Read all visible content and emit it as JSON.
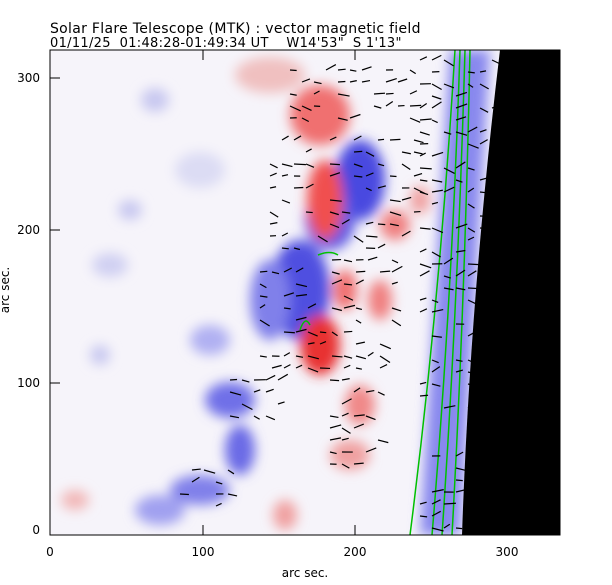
{
  "header": {
    "title": "Solar Flare Telescope (MTK) : vector magnetic field",
    "subtitle": "01/11/25  01:48:28-01:49:34 UT    W14'53\"  S 1'13\""
  },
  "chart_data": {
    "type": "heatmap",
    "title": "Solar Flare Telescope (MTK) : vector magnetic field",
    "subtitle": "01/11/25  01:48:28-01:49:34 UT    W14'53\"  S 1'13\"",
    "xlabel": "arc sec.",
    "ylabel": "arc sec.",
    "xlim": [
      0,
      335
    ],
    "ylim": [
      0,
      318
    ],
    "xticks": [
      "0",
      "100",
      "200",
      "300"
    ],
    "yticks": [
      "0",
      "100",
      "200",
      "300"
    ],
    "colors": {
      "positive": "#e85050",
      "negative": "#4040e0",
      "limb": "#000000",
      "contour": "#00c000",
      "vectors": "#000000"
    }
  }
}
